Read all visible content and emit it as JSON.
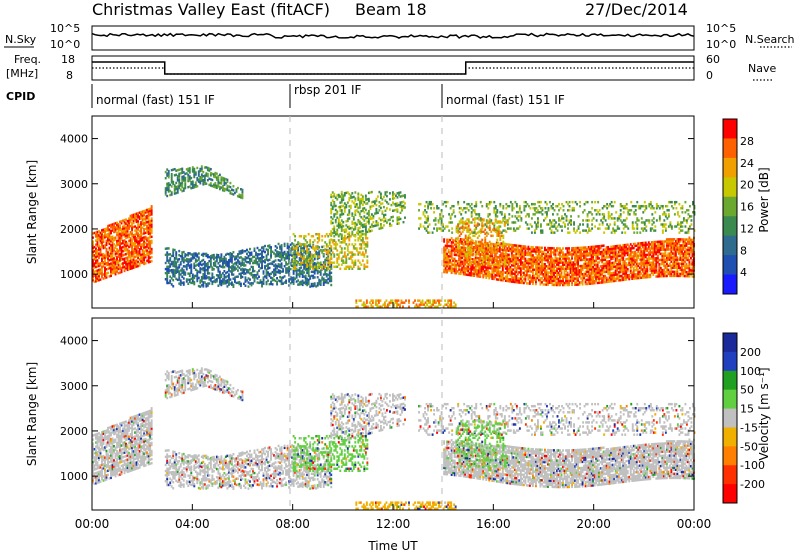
{
  "header": {
    "title": "Christmas Valley East (fitACF)",
    "beam": "Beam 18",
    "date": "27/Dec/2014"
  },
  "top_panels": {
    "nsky": {
      "left_label": "N.Sky",
      "right_label": "N.Search",
      "ticks": [
        "10^5",
        "10^0"
      ]
    },
    "freq": {
      "left_label_1": "Freq.",
      "left_label_2": "[MHz]",
      "left_ticks": [
        "18",
        "8"
      ],
      "right_label": "Nave",
      "right_ticks": [
        "60",
        "0"
      ]
    },
    "cpid": {
      "label": "CPID",
      "segments": [
        "normal (fast) 151 IF",
        "rbsp 201 IF",
        "normal (fast) 151 IF"
      ]
    }
  },
  "chart_data": [
    {
      "type": "heatmap",
      "name": "Power",
      "ylabel": "Slant Range [km]",
      "ylim": [
        250,
        4500
      ],
      "xlim_hours": [
        0,
        24
      ],
      "yticks": [
        1000,
        2000,
        3000,
        4000
      ],
      "colorbar": {
        "label": "Power [dB]",
        "ticks": [
          4,
          8,
          12,
          16,
          20,
          24,
          28
        ]
      }
    },
    {
      "type": "heatmap",
      "name": "Velocity",
      "ylabel": "Slant Range [km]",
      "ylim": [
        250,
        4500
      ],
      "xlim_hours": [
        0,
        24
      ],
      "yticks": [
        1000,
        2000,
        3000,
        4000
      ],
      "xlabel": "Time UT",
      "xticks": [
        "00:00",
        "04:00",
        "08:00",
        "12:00",
        "16:00",
        "20:00",
        "00:00"
      ],
      "colorbar": {
        "label": "Velocity [m s⁻¹]",
        "ticks": [
          200,
          100,
          50,
          15,
          -15,
          -50,
          -100,
          -200
        ]
      }
    }
  ],
  "colors": {
    "power": [
      "#1a1aff",
      "#1f4fb0",
      "#2f6a8f",
      "#3a8a50",
      "#6aa830",
      "#c8c800",
      "#f0a000",
      "#ff6000",
      "#ff0000"
    ],
    "velocity": [
      "#1a2a9a",
      "#2040c0",
      "#20a020",
      "#60d040",
      "#c0c0c0",
      "#f0b000",
      "#ff8000",
      "#ff3000",
      "#ff0000"
    ]
  }
}
